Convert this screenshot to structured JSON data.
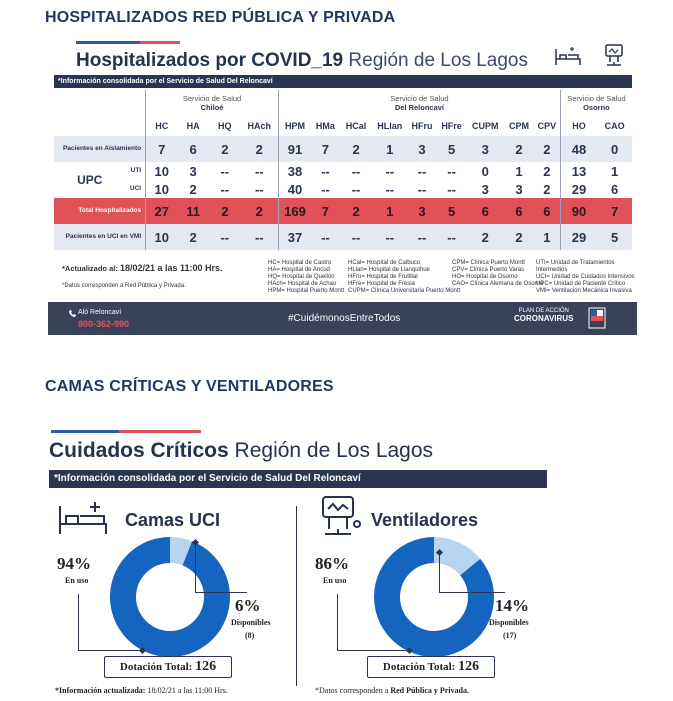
{
  "sections": {
    "hosp_heading": "HOSPITALIZADOS RED PÚBLICA Y PRIVADA",
    "crit_heading": "CAMAS CRÍTICAS Y VENTILADORES"
  },
  "colors": {
    "navy": "#2b3552",
    "accent_red": "#e05258",
    "blue": "#1565c0",
    "light_blue": "#b9d4f0"
  },
  "hosp": {
    "title_bold": "Hospitalizados por COVID_19",
    "title_region": "Región de Los Lagos",
    "info_bar": "*Información consolidada por el Servicio de Salud Del Reloncaví",
    "services": [
      {
        "top": "Servicio de Salud",
        "name": "Chiloé"
      },
      {
        "top": "Servicio de Salud",
        "name": "Del Reloncaví"
      },
      {
        "top": "Servicio de Salud",
        "name": "Osorno"
      }
    ],
    "headers": [
      "HC",
      "HA",
      "HQ",
      "HAch",
      "HPM",
      "HMa",
      "HCal",
      "HLlan",
      "HFru",
      "HFre",
      "CUPM",
      "CPM",
      "CPV",
      "HO",
      "CAO"
    ],
    "rows": [
      {
        "label": "Pacientes en Aislamiento",
        "sub": "",
        "values": [
          "7",
          "6",
          "2",
          "2",
          "91",
          "7",
          "2",
          "1",
          "3",
          "5",
          "3",
          "2",
          "2",
          "48",
          "0"
        ]
      },
      {
        "label": "UPC",
        "sub": "UTI",
        "values": [
          "10",
          "3",
          "--",
          "--",
          "38",
          "--",
          "--",
          "--",
          "--",
          "--",
          "0",
          "1",
          "2",
          "13",
          "1"
        ]
      },
      {
        "label": "",
        "sub": "UCI",
        "values": [
          "10",
          "2",
          "--",
          "--",
          "40",
          "--",
          "--",
          "--",
          "--",
          "--",
          "3",
          "3",
          "2",
          "29",
          "6"
        ]
      },
      {
        "label": "Total Hospitalizados",
        "sub": "",
        "values": [
          "27",
          "11",
          "2",
          "2",
          "169",
          "7",
          "2",
          "1",
          "3",
          "5",
          "6",
          "6",
          "6",
          "90",
          "7"
        ]
      },
      {
        "label": "Pacientes en UCI en VMI",
        "sub": "",
        "values": [
          "10",
          "2",
          "--",
          "--",
          "37",
          "--",
          "--",
          "--",
          "--",
          "--",
          "2",
          "2",
          "1",
          "29",
          "5"
        ]
      }
    ],
    "updated_label": "*Actualizado al:",
    "updated_value": "18/02/21 a las 11:00 Hrs.",
    "data_note": "*Datos corresponden a Red Pública y Privada.",
    "legend_cols": [
      [
        "HC= Hospital de Castro",
        "HA= Hospital de Ancud",
        "HQ= Hospital de Quellón",
        "HAch= Hospital de Achao",
        "HPM= Hospital Puerto Montt"
      ],
      [
        "HCal= Hospital de Calbuco",
        "HLlan= Hospital de Llanquihue",
        "HFru= Hospital de Frutillar",
        "HFre= Hospital de Fresia",
        "CUPM= Clínica Universitaria Puerto Montt"
      ],
      [
        "CPM= Clínica Puerto Montt",
        "CPV= Clínica Puerto Varas",
        "HO= Hospital de Osorno",
        "CAO= Clínica Alemana de Osorno"
      ],
      [
        "UTI= Unidad de Tratamientos Intermedios",
        "UCI= Unidad de Cuidados Intensivos",
        "UPC= Unidad de Paciente Crítico",
        "VMI= Ventilación Mecánica Invasiva"
      ]
    ],
    "band": {
      "contact": "Aló Reloncaví",
      "phone": "800-362-990",
      "hashtag": "#CuidémonosEntreTodos",
      "plan_top": "PLAN DE ACCIÓN",
      "plan": "CORONAVIRUS"
    }
  },
  "crit": {
    "title_bold": "Cuidados Críticos",
    "title_region": "Región de Los Lagos",
    "info_bar": "*Información consolidada por el Servicio de Salud Del Reloncaví",
    "panels": [
      {
        "title": "Camas UCI",
        "used_pct": "94%",
        "used_label": "En uso",
        "free_pct": "6%",
        "free_label": "Disponibles",
        "free_count": "(8)",
        "total_label": "Dotación Total:",
        "total": "126",
        "used_fraction": 0.94
      },
      {
        "title": "Ventiladores",
        "used_pct": "86%",
        "used_label": "En uso",
        "free_pct": "14%",
        "free_label": "Disponibles",
        "free_count": "(17)",
        "total_label": "Dotación Total:",
        "total": "126",
        "used_fraction": 0.86
      }
    ],
    "foot_left_label": "*Información actualizada:",
    "foot_left_value": "18/02/21 a las 11:00 Hrs.",
    "foot_right_label": "*Datos corresponden a",
    "foot_right_value": "Red Pública y Privada."
  }
}
